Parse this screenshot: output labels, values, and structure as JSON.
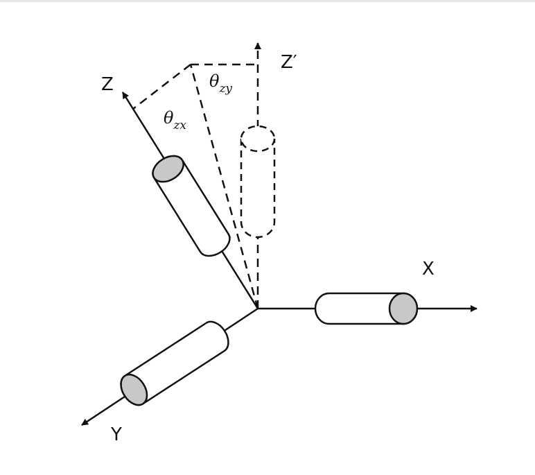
{
  "axes": {
    "x_label": "X",
    "y_label": "Y",
    "z_label": "Z",
    "z_prime_label": "Z′"
  },
  "angles": {
    "zx": {
      "symbol": "θ",
      "subscript": "zx"
    },
    "zy": {
      "symbol": "θ",
      "subscript": "zy"
    }
  },
  "colors": {
    "stroke": "#111111",
    "cap_fill": "#c8c8c8",
    "body_fill": "#ffffff"
  }
}
